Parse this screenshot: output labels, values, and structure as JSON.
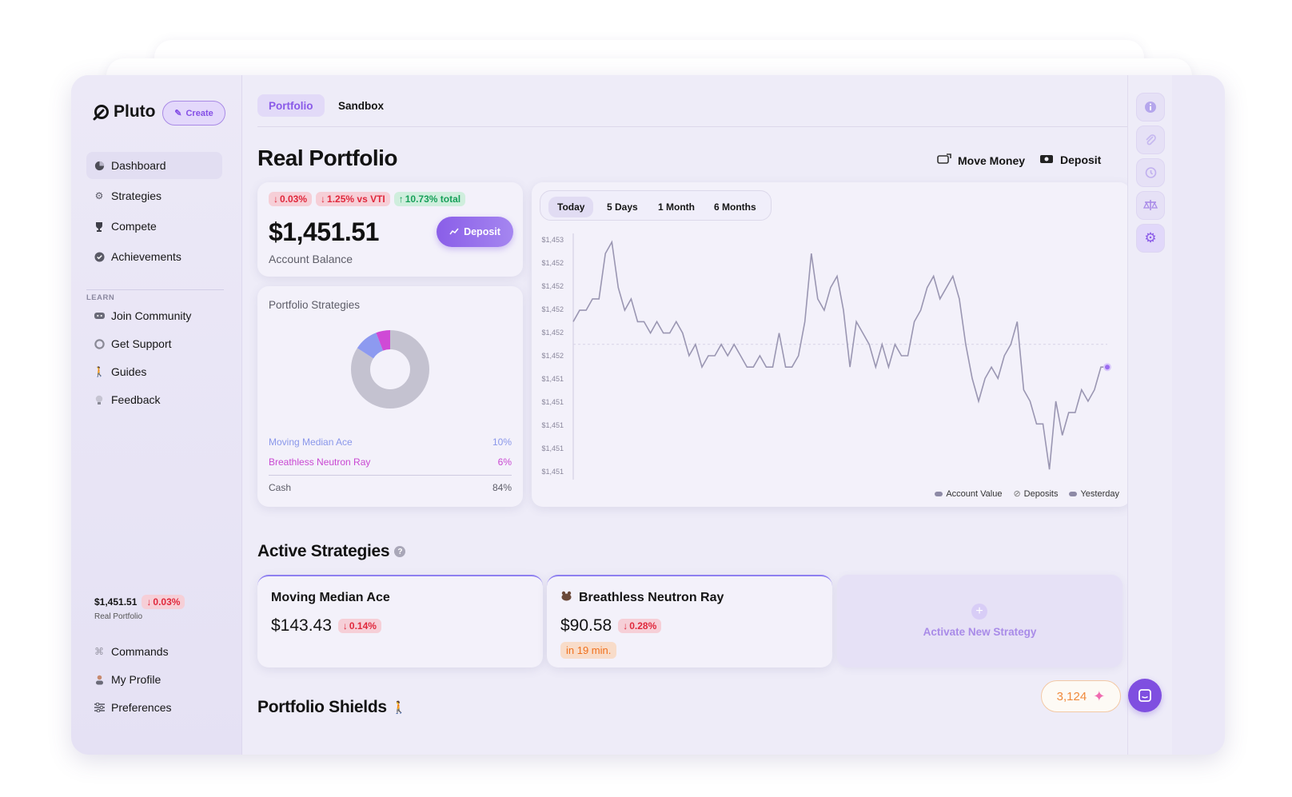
{
  "app": {
    "brand": "Pluto",
    "create_label": "Create"
  },
  "sidebar": {
    "items": [
      {
        "label": "Dashboard",
        "icon": "pie-chart-icon"
      },
      {
        "label": "Strategies",
        "icon": "gear-icon"
      },
      {
        "label": "Compete",
        "icon": "trophy-icon"
      },
      {
        "label": "Achievements",
        "icon": "check-badge-icon"
      }
    ],
    "learn_label": "LEARN",
    "learn_items": [
      {
        "label": "Join Community",
        "icon": "discord-icon"
      },
      {
        "label": "Get Support",
        "icon": "lifebuoy-icon"
      },
      {
        "label": "Guides",
        "icon": "walking-icon"
      },
      {
        "label": "Feedback",
        "icon": "lightbulb-icon"
      }
    ],
    "balance": "$1,451.51",
    "balance_change": "0.03%",
    "balance_sub": "Real Portfolio",
    "bottom_items": [
      {
        "label": "Commands",
        "icon": "command-icon"
      },
      {
        "label": "My Profile",
        "icon": "person-icon"
      },
      {
        "label": "Preferences",
        "icon": "sliders-icon"
      }
    ]
  },
  "tabs": [
    {
      "label": "Portfolio"
    },
    {
      "label": "Sandbox"
    }
  ],
  "page": {
    "title": "Real Portfolio",
    "move_money": "Move Money",
    "deposit": "Deposit"
  },
  "balance_card": {
    "badges": {
      "day": "0.03%",
      "vs": "1.25% vs VTI",
      "total": "10.73% total"
    },
    "amount": "$1,451.51",
    "label": "Account Balance",
    "deposit_label": "Deposit"
  },
  "strategies_card": {
    "title": "Portfolio Strategies",
    "rows": [
      {
        "name": "Moving Median Ace",
        "pct": "10%"
      },
      {
        "name": "Breathless Neutron Ray",
        "pct": "6%"
      }
    ],
    "cash": {
      "name": "Cash",
      "pct": "84%"
    },
    "colors": {
      "ace": "#8d9af0",
      "ray": "#cf4ad6",
      "cash": "#c4c2d0"
    }
  },
  "chart_data": {
    "type": "line",
    "ranges": [
      "Today",
      "5 Days",
      "1 Month",
      "6 Months"
    ],
    "selected_range": "Today",
    "y_ticks": [
      "$1,453",
      "$1,452",
      "$1,452",
      "$1,452",
      "$1,452",
      "$1,452",
      "$1,451",
      "$1,451",
      "$1,451",
      "$1,451",
      "$1,451"
    ],
    "ylim": [
      1450.98,
      1453.02
    ],
    "legend": [
      "Account Value",
      "Deposits",
      "Yesterday"
    ],
    "series": [
      {
        "name": "Account Value",
        "values": [
          1452.3,
          1452.4,
          1452.4,
          1452.5,
          1452.5,
          1452.9,
          1453.0,
          1452.6,
          1452.4,
          1452.5,
          1452.3,
          1452.3,
          1452.2,
          1452.3,
          1452.2,
          1452.2,
          1452.3,
          1452.2,
          1452.0,
          1452.1,
          1451.9,
          1452.0,
          1452.0,
          1452.1,
          1452.0,
          1452.1,
          1452.0,
          1451.9,
          1451.9,
          1452.0,
          1451.9,
          1451.9,
          1452.2,
          1451.9,
          1451.9,
          1452.0,
          1452.3,
          1452.9,
          1452.5,
          1452.4,
          1452.6,
          1452.7,
          1452.4,
          1451.9,
          1452.3,
          1452.2,
          1452.1,
          1451.9,
          1452.1,
          1451.9,
          1452.1,
          1452.0,
          1452.0,
          1452.3,
          1452.4,
          1452.6,
          1452.7,
          1452.5,
          1452.6,
          1452.7,
          1452.5,
          1452.1,
          1451.8,
          1451.6,
          1451.8,
          1451.9,
          1451.8,
          1452.0,
          1452.1,
          1452.3,
          1451.7,
          1451.6,
          1451.4,
          1451.4,
          1451.0,
          1451.6,
          1451.3,
          1451.5,
          1451.5,
          1451.7,
          1451.6,
          1451.7,
          1451.9,
          1451.9
        ]
      }
    ]
  },
  "active": {
    "title": "Active Strategies",
    "cards": [
      {
        "name": "Moving Median Ace",
        "price": "$143.43",
        "change": "0.14%"
      },
      {
        "name": "Breathless Neutron Ray",
        "price": "$90.58",
        "change": "0.28%",
        "eta": "in 19 min."
      }
    ],
    "activate_label": "Activate New Strategy"
  },
  "shields": {
    "title": "Portfolio Shields"
  },
  "points": "3,124",
  "rail": [
    "info-icon",
    "paperclip-icon",
    "history-icon",
    "scale-icon",
    "settings-icon"
  ]
}
